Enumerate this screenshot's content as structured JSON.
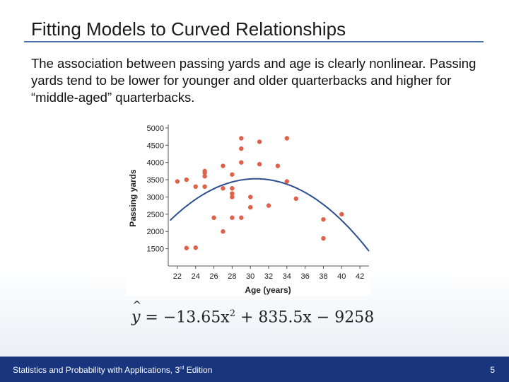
{
  "slide": {
    "title": "Fitting Models to Curved Relationships",
    "paragraph": "The association between passing yards and age is clearly nonlinear. Passing yards tend to be lower for younger and older quarterbacks and higher for “middle-aged” quarterbacks.",
    "equation": {
      "lhs": "y",
      "hat": "^",
      "middle": " = −13.65x",
      "exp": "2",
      "rest": " + 835.5x − 9258"
    },
    "footer": {
      "left_pre": "Statistics and Probability with Applications, 3",
      "left_sup": "rd",
      "left_post": " Edition",
      "page": "5"
    },
    "colors": {
      "point": "#e0614a",
      "curve": "#2b4f8f",
      "footer": "#18357d",
      "rule": "#4f73b3"
    }
  },
  "chart_data": {
    "type": "scatter",
    "xlabel": "Age (years)",
    "ylabel": "Passing yards",
    "xlim": [
      21,
      43
    ],
    "ylim": [
      1000,
      5100
    ],
    "xticks": [
      22,
      24,
      26,
      28,
      30,
      32,
      34,
      36,
      38,
      40,
      42
    ],
    "yticks": [
      1500,
      2000,
      2500,
      3000,
      3500,
      4000,
      4500,
      5000
    ],
    "points": [
      {
        "x": 22,
        "y": 3450
      },
      {
        "x": 23,
        "y": 3500
      },
      {
        "x": 23,
        "y": 1520
      },
      {
        "x": 24,
        "y": 3300
      },
      {
        "x": 24,
        "y": 1530
      },
      {
        "x": 25,
        "y": 3600
      },
      {
        "x": 25,
        "y": 3700
      },
      {
        "x": 25,
        "y": 3750
      },
      {
        "x": 25,
        "y": 3300
      },
      {
        "x": 26,
        "y": 2400
      },
      {
        "x": 27,
        "y": 2000
      },
      {
        "x": 27,
        "y": 3250
      },
      {
        "x": 27,
        "y": 3900
      },
      {
        "x": 28,
        "y": 3650
      },
      {
        "x": 28,
        "y": 3250
      },
      {
        "x": 28,
        "y": 3100
      },
      {
        "x": 28,
        "y": 3000
      },
      {
        "x": 28,
        "y": 2400
      },
      {
        "x": 29,
        "y": 4700
      },
      {
        "x": 29,
        "y": 4400
      },
      {
        "x": 29,
        "y": 4000
      },
      {
        "x": 29,
        "y": 2400
      },
      {
        "x": 30,
        "y": 3000
      },
      {
        "x": 30,
        "y": 2700
      },
      {
        "x": 31,
        "y": 4600
      },
      {
        "x": 31,
        "y": 3950
      },
      {
        "x": 32,
        "y": 2750
      },
      {
        "x": 33,
        "y": 3900
      },
      {
        "x": 34,
        "y": 4700
      },
      {
        "x": 34,
        "y": 3450
      },
      {
        "x": 35,
        "y": 2950
      },
      {
        "x": 38,
        "y": 2350
      },
      {
        "x": 38,
        "y": 1800
      },
      {
        "x": 40,
        "y": 2500
      }
    ],
    "fit": {
      "a": -13.65,
      "b": 835.5,
      "c": -9258,
      "x_from": 21.2,
      "x_to": 43
    }
  }
}
